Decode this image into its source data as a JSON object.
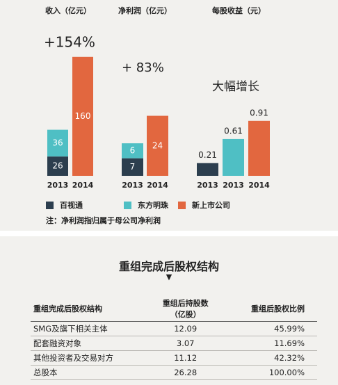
{
  "chart_data": [
    {
      "type": "bar",
      "title": "收入（亿元）",
      "annotation": "+154%",
      "stacked": true,
      "categories": [
        "2013",
        "2014"
      ],
      "series": [
        {
          "name": "百视通",
          "color": "#2c3e4e",
          "values": [
            26,
            null
          ]
        },
        {
          "name": "东方明珠",
          "color": "#4fbfc4",
          "values": [
            36,
            null
          ]
        },
        {
          "name": "新上市公司",
          "color": "#e2673f",
          "values": [
            null,
            160
          ]
        }
      ]
    },
    {
      "type": "bar",
      "title": "净利润（亿元）",
      "annotation": "+ 83%",
      "stacked": true,
      "categories": [
        "2013",
        "2014"
      ],
      "series": [
        {
          "name": "百视通",
          "color": "#2c3e4e",
          "values": [
            7,
            null
          ]
        },
        {
          "name": "东方明珠",
          "color": "#4fbfc4",
          "values": [
            6,
            null
          ]
        },
        {
          "name": "新上市公司",
          "color": "#e2673f",
          "values": [
            null,
            24
          ]
        }
      ]
    },
    {
      "type": "bar",
      "title": "每股收益（元）",
      "annotation": "大幅增长",
      "stacked": false,
      "categories": [
        "2013",
        "2013",
        "2014"
      ],
      "series": [
        {
          "name": "百视通",
          "color": "#2c3e4e",
          "values": [
            0.21,
            null,
            null
          ]
        },
        {
          "name": "东方明珠",
          "color": "#4fbfc4",
          "values": [
            null,
            0.61,
            null
          ]
        },
        {
          "name": "新上市公司",
          "color": "#e2673f",
          "values": [
            null,
            null,
            0.91
          ]
        }
      ]
    }
  ],
  "note": "注：净利润指归属于母公司净利润",
  "table": {
    "title": "重组完成后股权结构",
    "header": [
      "重组完成后股权结构",
      "重组后持股数\n（亿股）",
      "重组后股权比例"
    ],
    "rows": [
      [
        "SMG及旗下相关主体",
        "12.09",
        "45.99%"
      ],
      [
        "配套融资对象",
        "3.07",
        "11.69%"
      ],
      [
        "其他投资者及交易对方",
        "11.12",
        "42.32%"
      ],
      [
        "总股本",
        "26.28",
        "100.00%"
      ]
    ]
  }
}
